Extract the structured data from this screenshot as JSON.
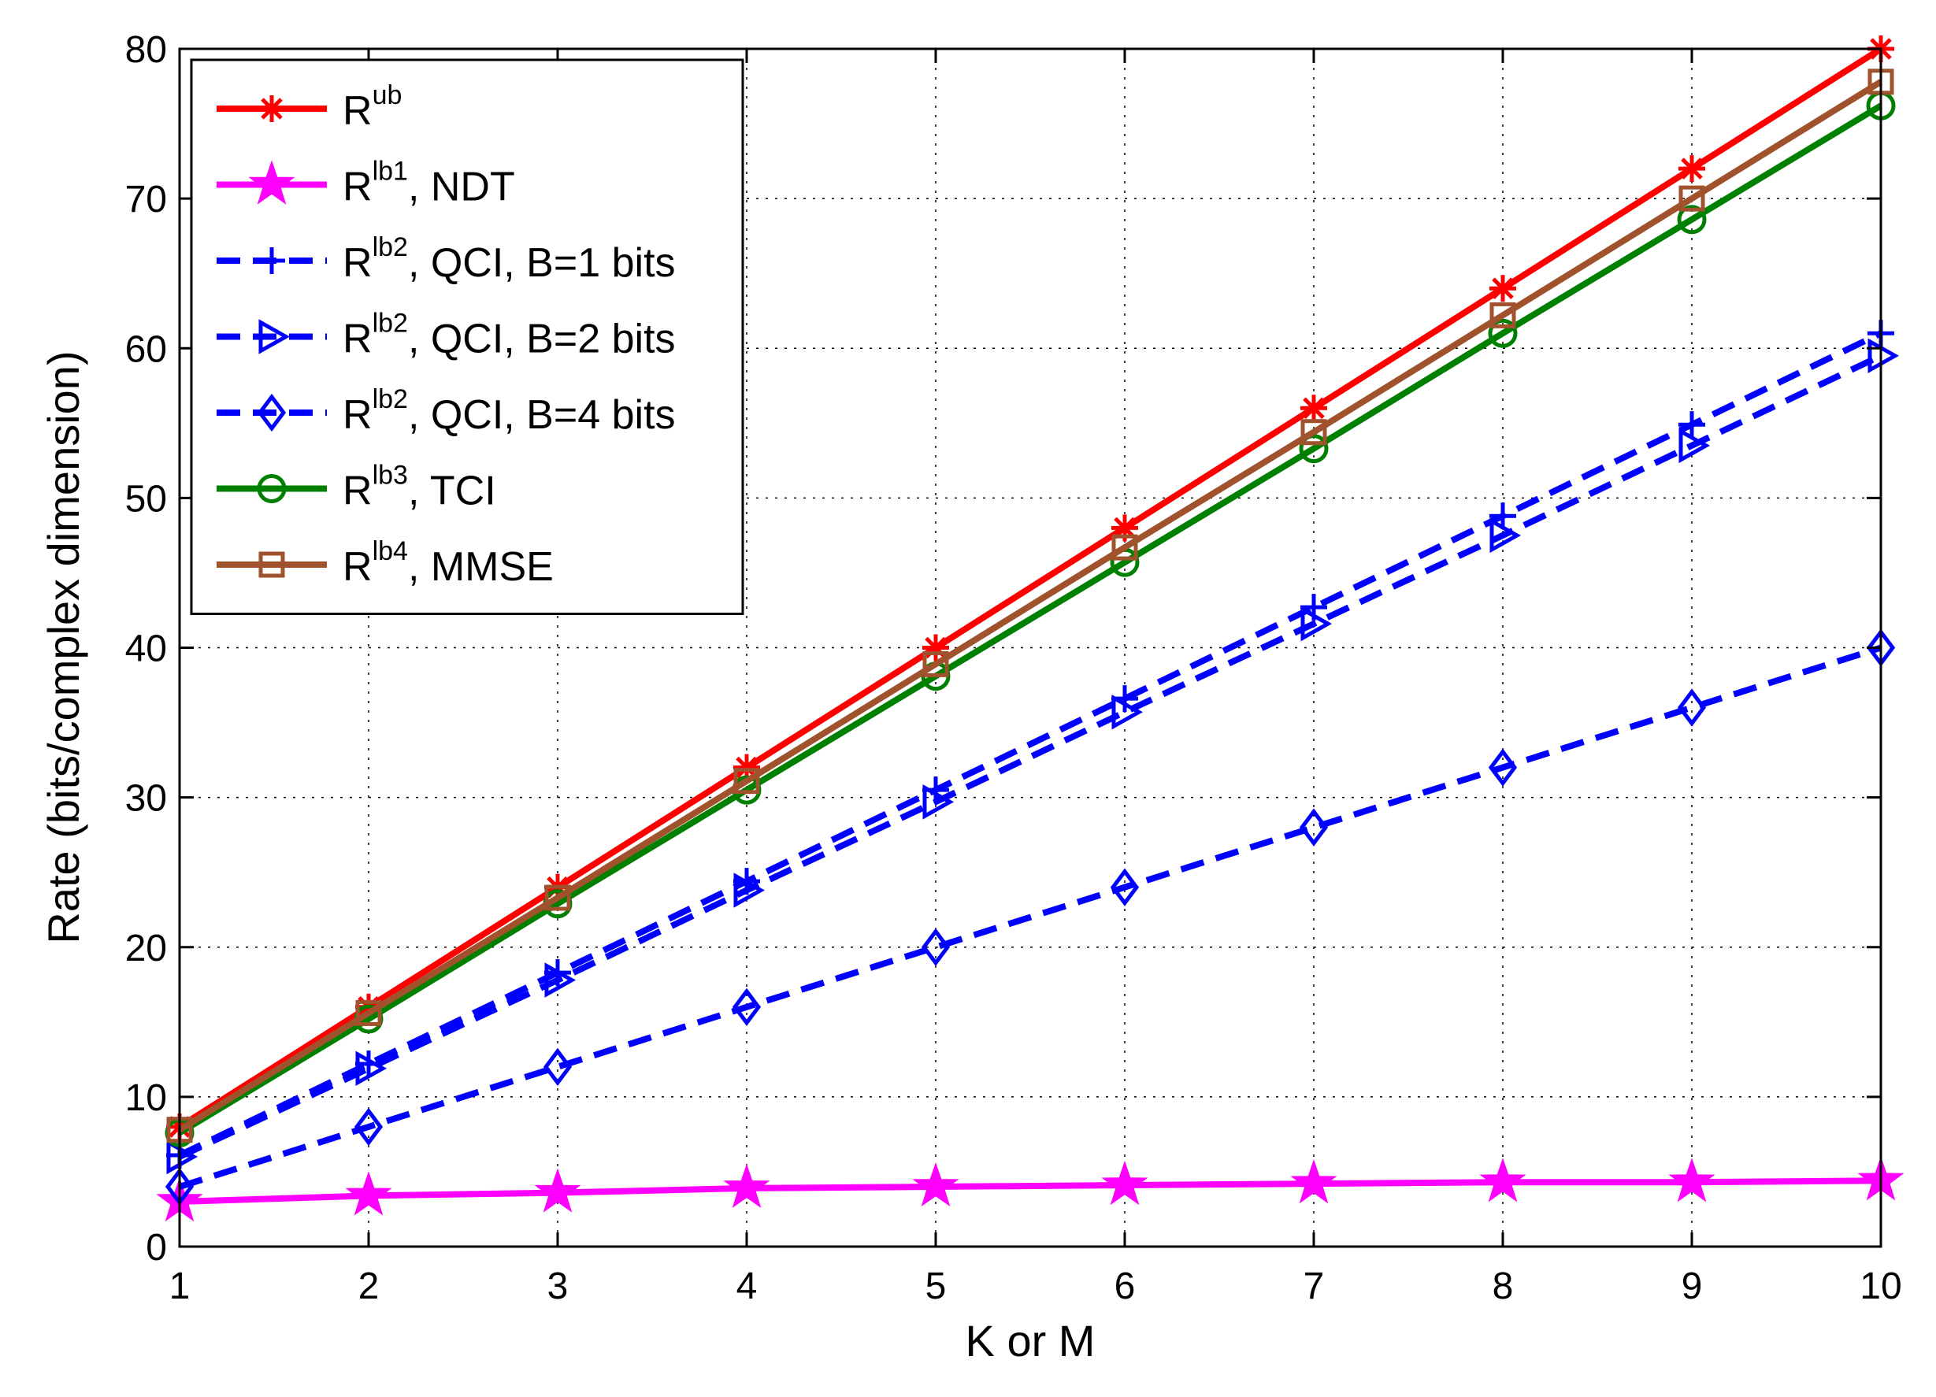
{
  "chart_data": {
    "type": "line",
    "title": "",
    "xlabel": "K or M",
    "ylabel": "Rate (bits/complex dimension)",
    "xlim": [
      1,
      10
    ],
    "ylim": [
      0,
      80
    ],
    "xticks": [
      1,
      2,
      3,
      4,
      5,
      6,
      7,
      8,
      9,
      10
    ],
    "yticks": [
      0,
      10,
      20,
      30,
      40,
      50,
      60,
      70,
      80
    ],
    "grid": true,
    "legend_position": "top-left",
    "x": [
      1,
      2,
      3,
      4,
      5,
      6,
      7,
      8,
      9,
      10
    ],
    "series": [
      {
        "id": "ub",
        "base": "R",
        "sup": "ub",
        "suffix": "",
        "color": "#ff0000",
        "dash": "solid",
        "marker": "asterisk",
        "values": [
          8,
          16,
          24,
          32,
          40,
          48,
          56,
          64,
          72,
          80
        ]
      },
      {
        "id": "lb1",
        "base": "R",
        "sup": "lb1",
        "suffix": ", NDT",
        "color": "#ff00ff",
        "dash": "solid",
        "marker": "star",
        "values": [
          3.0,
          3.4,
          3.6,
          3.9,
          4.0,
          4.1,
          4.2,
          4.3,
          4.3,
          4.4
        ]
      },
      {
        "id": "lb2b1",
        "base": "R",
        "sup": "lb2",
        "suffix": ", QCI, B=1 bits",
        "color": "#0000ff",
        "dash": "dashed",
        "marker": "plus",
        "values": [
          6.1,
          12.2,
          18.3,
          24.4,
          30.5,
          36.6,
          42.7,
          48.8,
          54.9,
          61.0
        ]
      },
      {
        "id": "lb2b2",
        "base": "R",
        "sup": "lb2",
        "suffix": ", QCI, B=2 bits",
        "color": "#0000ff",
        "dash": "dashed",
        "marker": "triangle-right",
        "values": [
          6.0,
          11.9,
          17.8,
          23.8,
          29.7,
          35.7,
          41.6,
          47.5,
          53.5,
          59.5
        ]
      },
      {
        "id": "lb2b4",
        "base": "R",
        "sup": "lb2",
        "suffix": ", QCI, B=4 bits",
        "color": "#0000ff",
        "dash": "dashed",
        "marker": "diamond",
        "values": [
          4,
          8,
          12,
          16,
          20,
          24,
          28,
          32,
          36,
          40
        ]
      },
      {
        "id": "lb3",
        "base": "R",
        "sup": "lb3",
        "suffix": ", TCI",
        "color": "#008000",
        "dash": "solid",
        "marker": "circle",
        "values": [
          7.6,
          15.2,
          22.9,
          30.5,
          38.1,
          45.7,
          53.3,
          61.0,
          68.6,
          76.2
        ]
      },
      {
        "id": "lb4",
        "base": "R",
        "sup": "lb4",
        "suffix": ", MMSE",
        "color": "#a0522d",
        "dash": "solid",
        "marker": "square",
        "values": [
          7.8,
          15.6,
          23.3,
          31.1,
          38.9,
          46.7,
          54.4,
          62.2,
          70.0,
          77.8
        ]
      }
    ]
  }
}
